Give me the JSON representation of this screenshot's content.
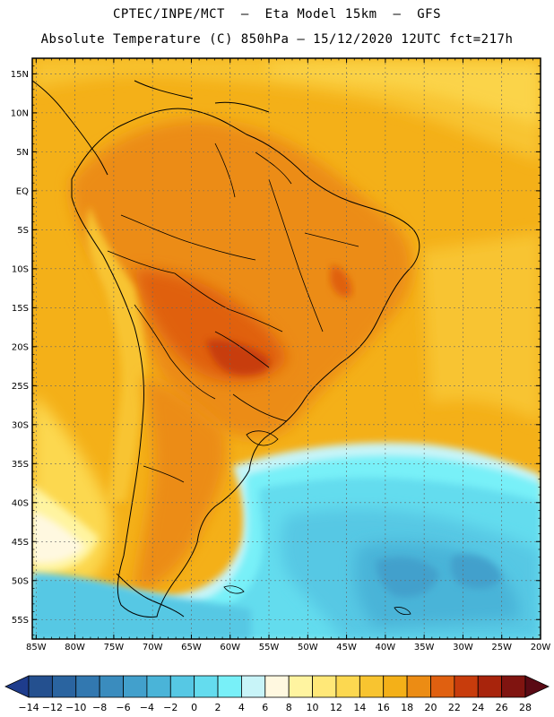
{
  "header": {
    "line1": "CPTEC/INPE/MCT  –  Eta Model 15km  –  GFS",
    "line2": "Absolute Temperature (C) 850hPa – 15/12/2020 12UTC fct=217h"
  },
  "map": {
    "lat_labels": [
      "15N",
      "10N",
      "5N",
      "EQ",
      "5S",
      "10S",
      "15S",
      "20S",
      "25S",
      "30S",
      "35S",
      "40S",
      "45S",
      "50S",
      "55S"
    ],
    "lon_labels": [
      "85W",
      "80W",
      "75W",
      "70W",
      "65W",
      "60W",
      "55W",
      "50W",
      "45W",
      "40W",
      "35W",
      "30W",
      "25W",
      "20W"
    ],
    "grid": true,
    "extent_lon": [
      -85.5,
      -20
    ],
    "extent_lat": [
      -57.5,
      17
    ]
  },
  "colorbar": {
    "labels": [
      "−14",
      "−12",
      "−10",
      "−8",
      "−6",
      "−4",
      "−2",
      "0",
      "2",
      "4",
      "6",
      "8",
      "10",
      "12",
      "14",
      "16",
      "18",
      "20",
      "22",
      "24",
      "26",
      "28"
    ],
    "colors": [
      "#1e3c8c",
      "#24508f",
      "#2a64a0",
      "#3278b0",
      "#3a8cbe",
      "#42a0cc",
      "#4ab4d8",
      "#56c8e4",
      "#64dcee",
      "#78f0f8",
      "#c8f4f8",
      "#fff8e0",
      "#fff4a0",
      "#ffe878",
      "#fcd850",
      "#f8c430",
      "#f4b018",
      "#ec8c14",
      "#e06010",
      "#c83c0c",
      "#a8240c",
      "#801410",
      "#5a0a14"
    ]
  }
}
